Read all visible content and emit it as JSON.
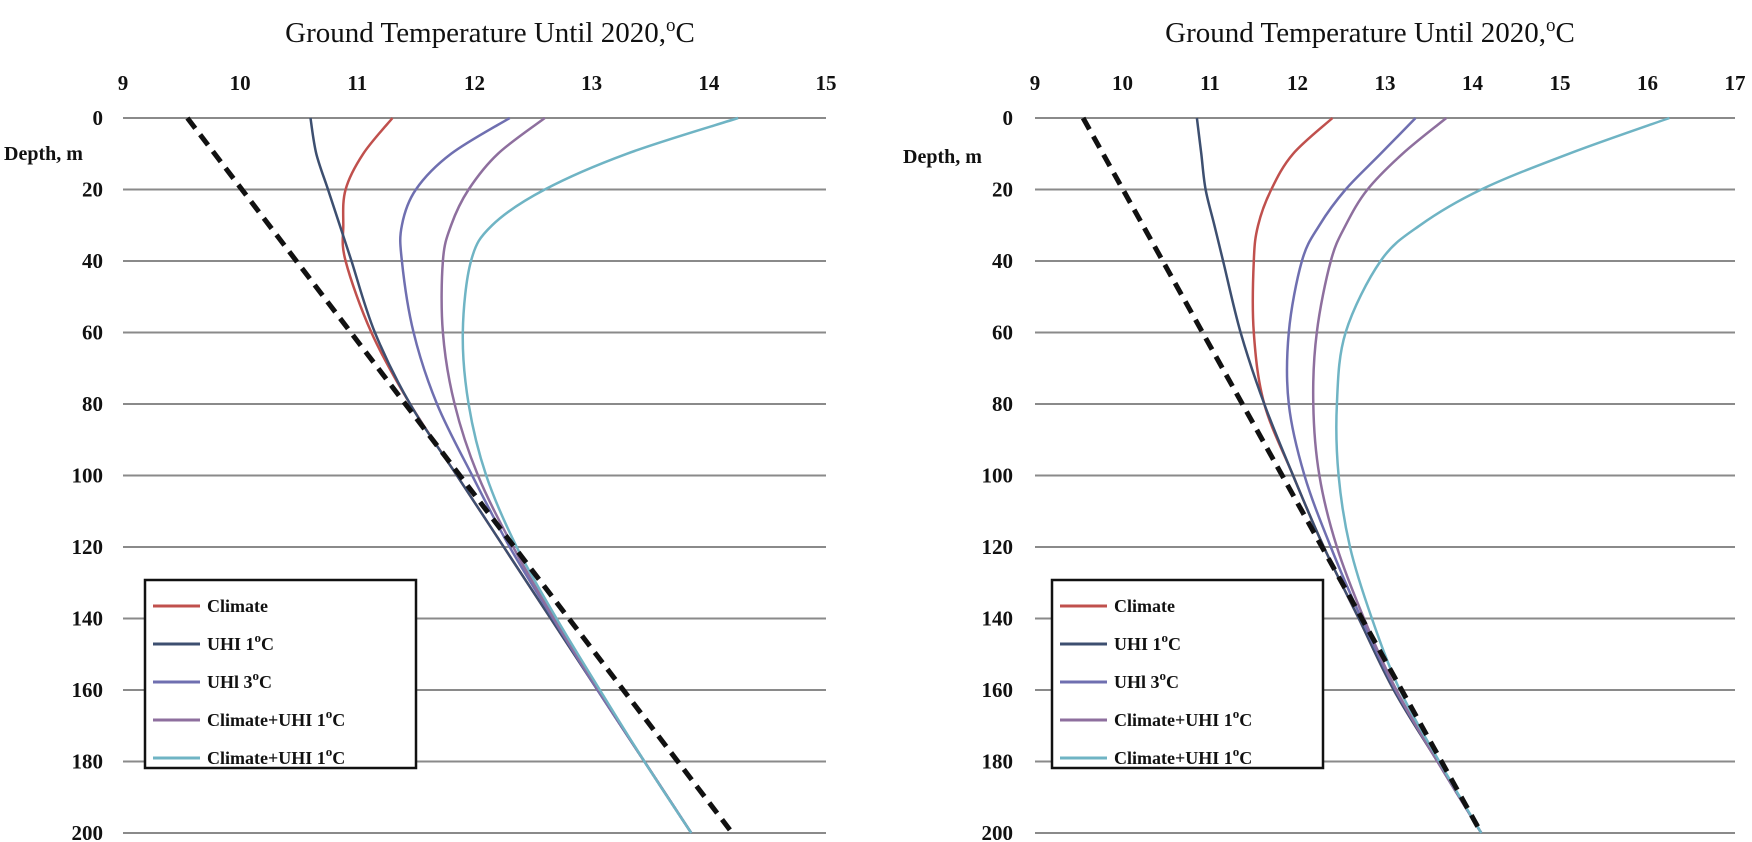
{
  "colors": {
    "Climate": "#c0504d",
    "UHI 1C": "#3d4f70",
    "UHI 3C": "#6f6fb0",
    "Climate+UHI 1C (a)": "#8e6f9e",
    "Climate+UHI 1C (b)": "#6fb4c4",
    "baseline": "#111111",
    "grid": "#8a8a8a"
  },
  "chart_data": [
    {
      "type": "line",
      "title": "Ground Temperature Until 2020,°C",
      "title_text": "Ground Temperature Until 2020,",
      "title_sup": "o",
      "title_unit": "C",
      "ylabel": "Depth, m",
      "xlim": [
        9,
        15
      ],
      "ylim": [
        0,
        200
      ],
      "x_ticks": [
        "9",
        "10",
        "11",
        "12",
        "13",
        "14",
        "15"
      ],
      "y_ticks": [
        "0",
        "20",
        "40",
        "60",
        "80",
        "100",
        "120",
        "140",
        "160",
        "180",
        "200"
      ],
      "y_inverted": true,
      "x_axis_position": "top",
      "grid": "horizontal",
      "legend_position": "bottom-left",
      "legend": [
        {
          "text": "Climate",
          "sup": "",
          "unit": ""
        },
        {
          "text": "UHI 1",
          "sup": "o",
          "unit": "C"
        },
        {
          "text": "UHl 3",
          "sup": "o",
          "unit": "C"
        },
        {
          "text": "Climate+UHI 1",
          "sup": "o",
          "unit": "C"
        },
        {
          "text": "Climate+UHI 1",
          "sup": "o",
          "unit": "C"
        }
      ],
      "series": [
        {
          "name": "Climate",
          "points": [
            [
              11.3,
              0
            ],
            [
              11.05,
              10
            ],
            [
              10.9,
              20
            ],
            [
              10.88,
              30
            ],
            [
              10.9,
              40
            ],
            [
              11.12,
              60
            ],
            [
              11.45,
              80
            ],
            [
              11.85,
              100
            ],
            [
              12.25,
              120
            ],
            [
              12.65,
              140
            ],
            [
              13.05,
              160
            ],
            [
              13.45,
              180
            ],
            [
              13.85,
              200
            ]
          ]
        },
        {
          "name": "UHI 1°C",
          "points": [
            [
              10.6,
              0
            ],
            [
              10.65,
              10
            ],
            [
              10.75,
              20
            ],
            [
              10.85,
              30
            ],
            [
              10.95,
              40
            ],
            [
              11.15,
              60
            ],
            [
              11.45,
              80
            ],
            [
              11.85,
              100
            ],
            [
              12.25,
              120
            ],
            [
              12.65,
              140
            ],
            [
              13.05,
              160
            ],
            [
              13.45,
              180
            ],
            [
              13.85,
              200
            ]
          ]
        },
        {
          "name": "UHl 3°C",
          "points": [
            [
              12.3,
              0
            ],
            [
              11.8,
              10
            ],
            [
              11.5,
              20
            ],
            [
              11.38,
              30
            ],
            [
              11.38,
              40
            ],
            [
              11.48,
              60
            ],
            [
              11.68,
              80
            ],
            [
              11.98,
              100
            ],
            [
              12.3,
              120
            ],
            [
              12.67,
              140
            ],
            [
              13.05,
              160
            ],
            [
              13.45,
              180
            ],
            [
              13.85,
              200
            ]
          ]
        },
        {
          "name": "Climate+UHI 1°C",
          "points": [
            [
              12.6,
              0
            ],
            [
              12.2,
              10
            ],
            [
              11.95,
              20
            ],
            [
              11.8,
              30
            ],
            [
              11.73,
              40
            ],
            [
              11.73,
              60
            ],
            [
              11.83,
              80
            ],
            [
              12.03,
              100
            ],
            [
              12.33,
              120
            ],
            [
              12.68,
              140
            ],
            [
              13.06,
              160
            ],
            [
              13.45,
              180
            ],
            [
              13.85,
              200
            ]
          ]
        },
        {
          "name": "Climate+UHI 1°C",
          "points": [
            [
              14.25,
              0
            ],
            [
              13.3,
              10
            ],
            [
              12.6,
              20
            ],
            [
              12.15,
              30
            ],
            [
              11.97,
              40
            ],
            [
              11.9,
              60
            ],
            [
              11.95,
              80
            ],
            [
              12.1,
              100
            ],
            [
              12.36,
              120
            ],
            [
              12.7,
              140
            ],
            [
              13.07,
              160
            ],
            [
              13.45,
              180
            ],
            [
              13.85,
              200
            ]
          ]
        },
        {
          "name": "",
          "style": "dashed",
          "points": [
            [
              9.55,
              0
            ],
            [
              14.2,
              200
            ]
          ]
        }
      ]
    },
    {
      "type": "line",
      "title": "Ground Temperature Until 2020,°C",
      "title_text": "Ground Temperature Until 2020,",
      "title_sup": "o",
      "title_unit": "C",
      "ylabel": "Depth, m",
      "xlim": [
        9,
        17
      ],
      "ylim": [
        0,
        200
      ],
      "x_ticks": [
        "9",
        "10",
        "11",
        "12",
        "13",
        "14",
        "15",
        "16",
        "17"
      ],
      "y_ticks": [
        "0",
        "20",
        "40",
        "60",
        "80",
        "100",
        "120",
        "140",
        "160",
        "180",
        "200"
      ],
      "y_inverted": true,
      "x_axis_position": "top",
      "grid": "horizontal",
      "legend_position": "bottom-left",
      "legend": [
        {
          "text": "Climate",
          "sup": "",
          "unit": ""
        },
        {
          "text": "UHI 1",
          "sup": "o",
          "unit": "C"
        },
        {
          "text": "UHl 3",
          "sup": "o",
          "unit": "C"
        },
        {
          "text": "Climate+UHI 1",
          "sup": "o",
          "unit": "C"
        },
        {
          "text": "Climate+UHI 1",
          "sup": "o",
          "unit": "C"
        }
      ],
      "series": [
        {
          "name": "Climate",
          "points": [
            [
              12.4,
              0
            ],
            [
              11.95,
              10
            ],
            [
              11.7,
              20
            ],
            [
              11.55,
              30
            ],
            [
              11.5,
              40
            ],
            [
              11.5,
              60
            ],
            [
              11.62,
              80
            ],
            [
              11.95,
              100
            ],
            [
              12.3,
              120
            ],
            [
              12.7,
              140
            ],
            [
              13.1,
              160
            ],
            [
              13.6,
              180
            ],
            [
              14.1,
              200
            ]
          ]
        },
        {
          "name": "UHI 1°C",
          "points": [
            [
              10.85,
              0
            ],
            [
              10.9,
              10
            ],
            [
              10.95,
              20
            ],
            [
              11.05,
              30
            ],
            [
              11.15,
              40
            ],
            [
              11.35,
              60
            ],
            [
              11.62,
              80
            ],
            [
              11.95,
              100
            ],
            [
              12.3,
              120
            ],
            [
              12.7,
              140
            ],
            [
              13.1,
              160
            ],
            [
              13.6,
              180
            ],
            [
              14.1,
              200
            ]
          ]
        },
        {
          "name": "UHl 3°C",
          "points": [
            [
              13.35,
              0
            ],
            [
              12.95,
              10
            ],
            [
              12.55,
              20
            ],
            [
              12.25,
              30
            ],
            [
              12.05,
              40
            ],
            [
              11.9,
              60
            ],
            [
              11.9,
              80
            ],
            [
              12.08,
              100
            ],
            [
              12.38,
              120
            ],
            [
              12.73,
              140
            ],
            [
              13.12,
              160
            ],
            [
              13.6,
              180
            ],
            [
              14.1,
              200
            ]
          ]
        },
        {
          "name": "Climate+UHI 1°C",
          "points": [
            [
              13.7,
              0
            ],
            [
              13.2,
              10
            ],
            [
              12.8,
              20
            ],
            [
              12.55,
              30
            ],
            [
              12.38,
              40
            ],
            [
              12.22,
              60
            ],
            [
              12.18,
              80
            ],
            [
              12.25,
              100
            ],
            [
              12.45,
              120
            ],
            [
              12.76,
              140
            ],
            [
              13.13,
              160
            ],
            [
              13.6,
              180
            ],
            [
              14.1,
              200
            ]
          ]
        },
        {
          "name": "Climate+UHI 1°C",
          "points": [
            [
              16.25,
              0
            ],
            [
              15.1,
              10
            ],
            [
              14.1,
              20
            ],
            [
              13.4,
              30
            ],
            [
              12.95,
              40
            ],
            [
              12.55,
              60
            ],
            [
              12.45,
              80
            ],
            [
              12.47,
              100
            ],
            [
              12.6,
              120
            ],
            [
              12.85,
              140
            ],
            [
              13.17,
              160
            ],
            [
              13.62,
              180
            ],
            [
              14.1,
              200
            ]
          ]
        },
        {
          "name": "",
          "style": "dashed",
          "points": [
            [
              9.55,
              0
            ],
            [
              14.1,
              200
            ]
          ]
        }
      ]
    }
  ]
}
